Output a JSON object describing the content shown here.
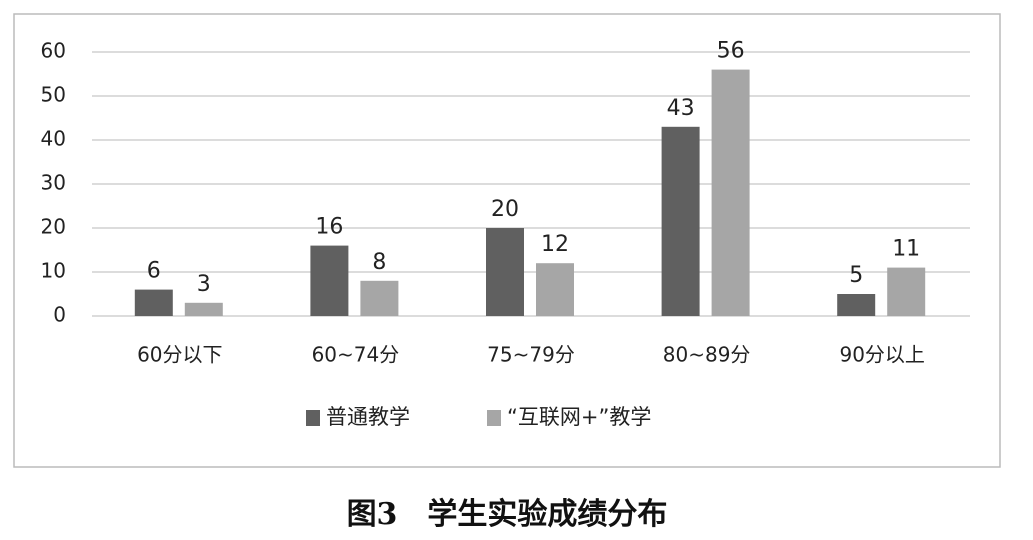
{
  "chart_data": {
    "type": "bar",
    "title": "图3　学生实验成绩分布",
    "categories": [
      "60分以下",
      "60~74分",
      "75~79分",
      "80~89分",
      "90分以上"
    ],
    "series": [
      {
        "name": "普通教学",
        "color": "#606060",
        "values": [
          6,
          16,
          20,
          43,
          5
        ]
      },
      {
        "name": "“互联网+”教学",
        "color": "#a6a6a6",
        "values": [
          3,
          8,
          12,
          56,
          11
        ]
      }
    ],
    "ylim": [
      0,
      60
    ],
    "yticks": [
      0,
      10,
      20,
      30,
      40,
      50,
      60
    ],
    "grid": true,
    "legend": "bottom"
  }
}
